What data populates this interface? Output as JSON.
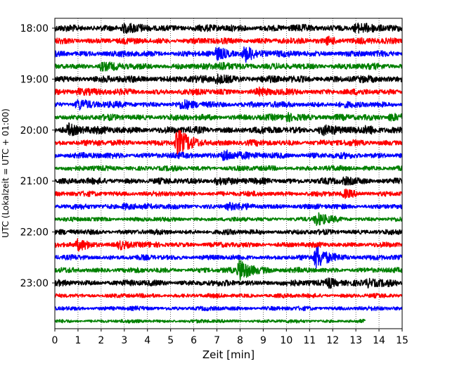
{
  "chart_data": {
    "type": "line",
    "title": "",
    "xlabel": "Zeit  [min]",
    "ylabel": "UTC (Lokalzeit = UTC + 01:00)",
    "xlim": [
      0,
      15
    ],
    "x_ticks": [
      0,
      1,
      2,
      3,
      4,
      5,
      6,
      7,
      8,
      9,
      10,
      11,
      12,
      13,
      14,
      15
    ],
    "x_tick_labels": [
      "0",
      "1",
      "2",
      "3",
      "4",
      "5",
      "6",
      "7",
      "8",
      "9",
      "10",
      "11",
      "12",
      "13",
      "14",
      "15"
    ],
    "y_tick_labels": [
      "18:00",
      "19:00",
      "20:00",
      "21:00",
      "22:00",
      "23:00"
    ],
    "grid": "vertical dotted",
    "trace_interval_minutes": 15,
    "trace_colors": [
      "#000000",
      "#ff0000",
      "#0000ff",
      "#008000"
    ],
    "series": [
      {
        "start": "18:00",
        "color": "#000000",
        "end_min": 15,
        "amplitude": 4,
        "events": [
          {
            "t": 3.0,
            "a": 4
          },
          {
            "t": 13.0,
            "a": 5
          }
        ]
      },
      {
        "start": "18:15",
        "color": "#ff0000",
        "end_min": 15,
        "amplitude": 3.5,
        "events": [
          {
            "t": 11.8,
            "a": 4
          }
        ]
      },
      {
        "start": "18:30",
        "color": "#0000ff",
        "end_min": 15,
        "amplitude": 3.5,
        "events": [
          {
            "t": 7.0,
            "a": 6
          },
          {
            "t": 8.2,
            "a": 10
          }
        ]
      },
      {
        "start": "18:45",
        "color": "#008000",
        "end_min": 15,
        "amplitude": 3.5,
        "events": [
          {
            "t": 2.0,
            "a": 4
          },
          {
            "t": 7.2,
            "a": 5
          }
        ]
      },
      {
        "start": "19:00",
        "color": "#000000",
        "end_min": 15,
        "amplitude": 4,
        "events": [
          {
            "t": 7.0,
            "a": 5
          }
        ]
      },
      {
        "start": "19:15",
        "color": "#ff0000",
        "end_min": 15,
        "amplitude": 3.5,
        "events": [
          {
            "t": 1.0,
            "a": 4
          },
          {
            "t": 8.8,
            "a": 3
          }
        ]
      },
      {
        "start": "19:30",
        "color": "#0000ff",
        "end_min": 15,
        "amplitude": 3.5,
        "events": [
          {
            "t": 1.0,
            "a": 6
          },
          {
            "t": 5.5,
            "a": 4
          }
        ]
      },
      {
        "start": "19:45",
        "color": "#008000",
        "end_min": 15,
        "amplitude": 3.5,
        "events": [
          {
            "t": 10.0,
            "a": 5
          },
          {
            "t": 14.5,
            "a": 5
          }
        ]
      },
      {
        "start": "20:00",
        "color": "#000000",
        "end_min": 15,
        "amplitude": 4,
        "events": [
          {
            "t": 0.6,
            "a": 7
          },
          {
            "t": 11.5,
            "a": 5
          },
          {
            "t": 13.5,
            "a": 4
          }
        ]
      },
      {
        "start": "20:15",
        "color": "#ff0000",
        "end_min": 15,
        "amplitude": 3.5,
        "events": [
          {
            "t": 5.3,
            "a": 18
          }
        ]
      },
      {
        "start": "20:30",
        "color": "#0000ff",
        "end_min": 15,
        "amplitude": 3.5,
        "events": [
          {
            "t": 7.3,
            "a": 8
          }
        ]
      },
      {
        "start": "20:45",
        "color": "#008000",
        "end_min": 15,
        "amplitude": 3,
        "events": []
      },
      {
        "start": "21:00",
        "color": "#000000",
        "end_min": 15,
        "amplitude": 3.5,
        "events": [
          {
            "t": 7.0,
            "a": 4
          },
          {
            "t": 12.5,
            "a": 4
          }
        ]
      },
      {
        "start": "21:15",
        "color": "#ff0000",
        "end_min": 15,
        "amplitude": 3,
        "events": [
          {
            "t": 12.5,
            "a": 4
          }
        ]
      },
      {
        "start": "21:30",
        "color": "#0000ff",
        "end_min": 15,
        "amplitude": 3,
        "events": [
          {
            "t": 3.0,
            "a": 4
          },
          {
            "t": 7.5,
            "a": 4
          }
        ]
      },
      {
        "start": "21:45",
        "color": "#008000",
        "end_min": 15,
        "amplitude": 2.5,
        "events": [
          {
            "t": 11.3,
            "a": 9
          }
        ]
      },
      {
        "start": "22:00",
        "color": "#000000",
        "end_min": 15,
        "amplitude": 3,
        "events": []
      },
      {
        "start": "22:15",
        "color": "#ff0000",
        "end_min": 15,
        "amplitude": 3,
        "events": [
          {
            "t": 1.0,
            "a": 6
          },
          {
            "t": 2.8,
            "a": 5
          }
        ]
      },
      {
        "start": "22:30",
        "color": "#0000ff",
        "end_min": 15,
        "amplitude": 3,
        "events": [
          {
            "t": 11.3,
            "a": 16
          }
        ]
      },
      {
        "start": "22:45",
        "color": "#008000",
        "end_min": 15,
        "amplitude": 3,
        "events": [
          {
            "t": 8.0,
            "a": 16
          }
        ]
      },
      {
        "start": "23:00",
        "color": "#000000",
        "end_min": 15,
        "amplitude": 3.5,
        "events": [
          {
            "t": 11.8,
            "a": 6
          },
          {
            "t": 13.5,
            "a": 4
          }
        ]
      },
      {
        "start": "23:15",
        "color": "#ff0000",
        "end_min": 15,
        "amplitude": 2.5,
        "events": []
      },
      {
        "start": "23:30",
        "color": "#0000ff",
        "end_min": 15,
        "amplitude": 2.5,
        "events": []
      },
      {
        "start": "23:45",
        "color": "#008000",
        "end_min": 13.4,
        "amplitude": 2,
        "events": []
      }
    ]
  }
}
